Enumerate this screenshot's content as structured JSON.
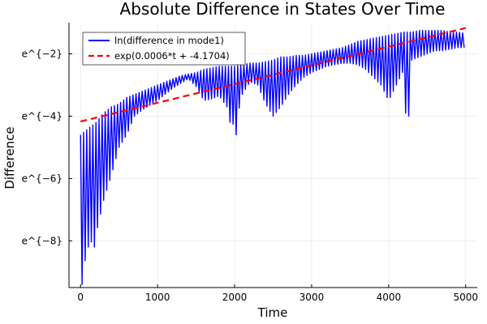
{
  "chart_data": {
    "type": "line",
    "title": "Absolute Difference in States Over Time",
    "xlabel": "Time",
    "ylabel": "Difference",
    "xlim": [
      -150,
      5150
    ],
    "ylim": [
      -9.5,
      -1.0
    ],
    "y_scale": "log (natural)",
    "xticks": [
      0,
      1000,
      2000,
      3000,
      4000,
      5000
    ],
    "xtick_labels": [
      "0",
      "1000",
      "2000",
      "3000",
      "4000",
      "5000"
    ],
    "yticks": [
      -8,
      -6,
      -4,
      -2
    ],
    "ytick_labels": [
      "e^{−8}",
      "e^{−6}",
      "e^{−4}",
      "e^{−2}"
    ],
    "grid": true,
    "legend_position": "top-left",
    "series": [
      {
        "name": "ln(difference in mode1)",
        "color": "#0000ff",
        "style": "solid",
        "oscillation_period": 40,
        "upper_envelope": {
          "x": [
            0,
            100,
            200,
            300,
            400,
            500,
            600,
            700,
            800,
            900,
            1000,
            1100,
            1200,
            1300,
            1400,
            1500,
            1600,
            1700,
            1800,
            1900,
            2000,
            2100,
            2200,
            2300,
            2400,
            2500,
            2600,
            2700,
            2800,
            2900,
            3000,
            3100,
            3200,
            3300,
            3400,
            3500,
            3600,
            3700,
            3800,
            3900,
            4000,
            4100,
            4200,
            4300,
            4400,
            4500,
            4600,
            4700,
            4800,
            4900,
            5000
          ],
          "y": [
            -4.6,
            -4.4,
            -4.2,
            -3.9,
            -3.7,
            -3.6,
            -3.4,
            -3.3,
            -3.2,
            -3.1,
            -3.0,
            -2.9,
            -2.8,
            -2.7,
            -2.65,
            -2.6,
            -2.5,
            -2.45,
            -2.4,
            -2.4,
            -2.4,
            -2.35,
            -2.3,
            -2.3,
            -2.25,
            -2.2,
            -2.1,
            -2.1,
            -2.05,
            -2.05,
            -2.0,
            -1.95,
            -1.9,
            -1.85,
            -1.8,
            -1.7,
            -1.6,
            -1.55,
            -1.5,
            -1.45,
            -1.4,
            -1.35,
            -1.3,
            -1.3,
            -1.25,
            -1.25,
            -1.25,
            -1.25,
            -1.3,
            -1.3,
            -1.35
          ]
        },
        "lower_envelope": {
          "x": [
            0,
            100,
            200,
            300,
            400,
            500,
            600,
            700,
            800,
            900,
            1000,
            1100,
            1200,
            1300,
            1400,
            1500,
            1600,
            1700,
            1800,
            1900,
            2000,
            2100,
            2200,
            2300,
            2400,
            2500,
            2600,
            2700,
            2800,
            2900,
            3000,
            3100,
            3200,
            3300,
            3400,
            3500,
            3600,
            3700,
            3800,
            3900,
            4000,
            4100,
            4200,
            4300,
            4400,
            4500,
            4600,
            4700,
            4800,
            4900,
            5000
          ],
          "y": [
            -9.3,
            -8.2,
            -7.8,
            -6.7,
            -5.9,
            -5.0,
            -4.6,
            -4.0,
            -3.8,
            -3.65,
            -3.5,
            -3.3,
            -3.1,
            -2.95,
            -2.8,
            -3.05,
            -3.5,
            -3.45,
            -3.35,
            -3.7,
            -4.4,
            -3.3,
            -2.9,
            -3.0,
            -3.6,
            -4.0,
            -3.7,
            -3.3,
            -3.0,
            -2.75,
            -2.6,
            -2.5,
            -2.4,
            -2.35,
            -2.3,
            -2.3,
            -2.35,
            -2.5,
            -2.75,
            -3.0,
            -3.5,
            -3.0,
            -2.5,
            -2.2,
            -2.1,
            -2.0,
            -1.9,
            -1.9,
            -1.85,
            -1.8,
            -1.8
          ]
        },
        "dips": [
          {
            "x": 20,
            "y": -9.4
          },
          {
            "x": 60,
            "y": -8.4
          },
          {
            "x": 190,
            "y": -8.2
          },
          {
            "x": 2020,
            "y": -4.6
          },
          {
            "x": 1950,
            "y": -4.2
          },
          {
            "x": 4230,
            "y": -3.9
          },
          {
            "x": 4270,
            "y": -4.0
          }
        ]
      },
      {
        "name": "exp(0.0006*t + -4.1704)",
        "color": "#ff0000",
        "style": "dashed",
        "slope": 0.0006,
        "intercept": -4.1704,
        "x": [
          0,
          5000
        ],
        "y": [
          -4.1704,
          -1.1704
        ]
      }
    ]
  }
}
